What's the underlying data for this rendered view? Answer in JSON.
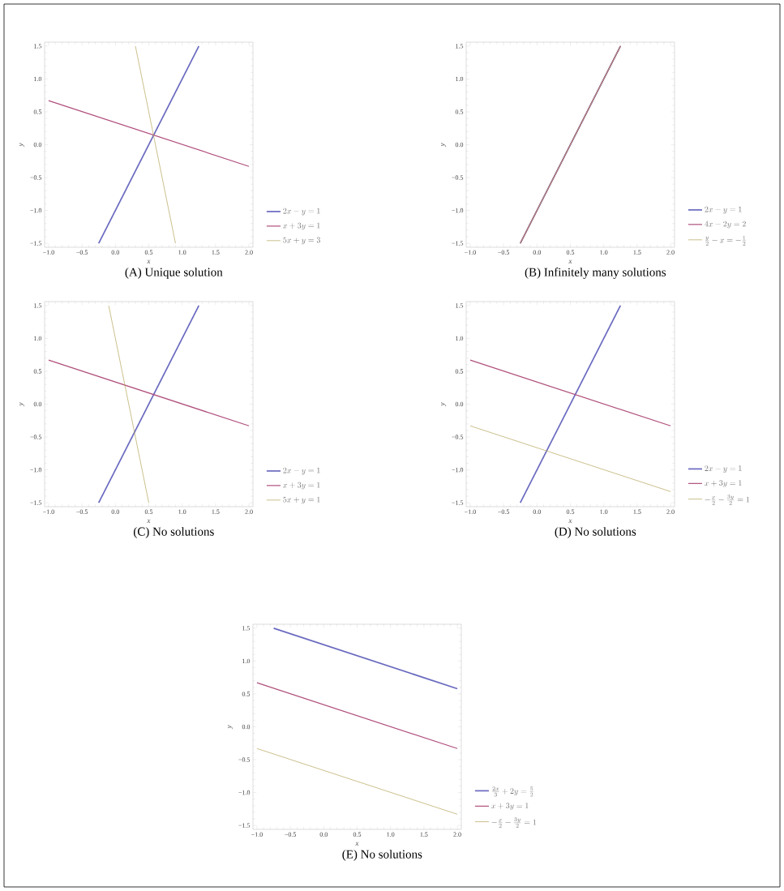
{
  "chart_data": [
    {
      "type": "line",
      "title": "(A) Unique solution",
      "xlabel": "x",
      "ylabel": "y",
      "xlim": [
        -1.06,
        2.06
      ],
      "ylim": [
        -1.56,
        1.56
      ],
      "xticks": [
        {
          "value": -1,
          "label": "−1.0"
        },
        {
          "value": -0.5,
          "label": "−0.5"
        },
        {
          "value": 0,
          "label": "0.0"
        },
        {
          "value": 0.5,
          "label": "0.5"
        },
        {
          "value": 1,
          "label": "1.0"
        },
        {
          "value": 1.5,
          "label": "1.5"
        },
        {
          "value": 2,
          "label": "2.0"
        }
      ],
      "yticks": [
        {
          "value": -1.5,
          "label": "−1.5"
        },
        {
          "value": -1,
          "label": "−1.0"
        },
        {
          "value": -0.5,
          "label": "−0.5"
        },
        {
          "value": 0,
          "label": "0.0"
        },
        {
          "value": 0.5,
          "label": "0.5"
        },
        {
          "value": 1,
          "label": "1.0"
        },
        {
          "value": 1.5,
          "label": "1.5"
        }
      ],
      "legend": "bottom right",
      "series": [
        {
          "name": "2x-y=1",
          "color": "#6a6ac0",
          "x": [
            -0.25,
            1.25
          ],
          "values": [
            -1.5,
            1.5
          ]
        },
        {
          "name": "x+3y=1",
          "color": "#b04f7c",
          "x": [
            -1,
            2
          ],
          "values": [
            0.67,
            -0.33
          ]
        },
        {
          "name": "5x+y=3",
          "color": "#b5a55a",
          "x": [
            0.3,
            0.9
          ],
          "values": [
            1.5,
            -1.5
          ]
        }
      ]
    },
    {
      "type": "line",
      "title": "(B) Infinitely many solutions",
      "xlabel": "x",
      "ylabel": "y",
      "xlim": [
        -1.06,
        2.06
      ],
      "ylim": [
        -1.56,
        1.56
      ],
      "xticks": [
        {
          "value": -1,
          "label": "−1.0"
        },
        {
          "value": -0.5,
          "label": "−0.5"
        },
        {
          "value": 0,
          "label": "0.0"
        },
        {
          "value": 0.5,
          "label": "0.5"
        },
        {
          "value": 1,
          "label": "1.0"
        },
        {
          "value": 1.5,
          "label": "1.5"
        },
        {
          "value": 2,
          "label": "2.0"
        }
      ],
      "yticks": [
        {
          "value": -1.5,
          "label": "−1.5"
        },
        {
          "value": -1,
          "label": "−1.0"
        },
        {
          "value": -0.5,
          "label": "−0.5"
        },
        {
          "value": 0,
          "label": "0.0"
        },
        {
          "value": 0.5,
          "label": "0.5"
        },
        {
          "value": 1,
          "label": "1.0"
        },
        {
          "value": 1.5,
          "label": "1.5"
        }
      ],
      "legend": "bottom right",
      "series": [
        {
          "name": "2x-y=1",
          "color": "#6a6ac0",
          "x": [
            -0.25,
            1.25
          ],
          "values": [
            -1.5,
            1.5
          ]
        },
        {
          "name": "4x-2y=2",
          "color": "#b04f7c",
          "x": [
            -0.25,
            1.25
          ],
          "values": [
            -1.5,
            1.5
          ]
        },
        {
          "name": "\\frac{y}{2}-x=-\\frac{1}{2}",
          "color": "#b5a55a",
          "x": [
            -0.25,
            1.25
          ],
          "values": [
            -1.5,
            1.5
          ]
        }
      ]
    },
    {
      "type": "line",
      "title": "(C) No solutions",
      "xlabel": "x",
      "ylabel": "y",
      "xlim": [
        -1.06,
        2.06
      ],
      "ylim": [
        -1.56,
        1.56
      ],
      "xticks": [
        {
          "value": -1,
          "label": "−1.0"
        },
        {
          "value": -0.5,
          "label": "−0.5"
        },
        {
          "value": 0,
          "label": "0.0"
        },
        {
          "value": 0.5,
          "label": "0.5"
        },
        {
          "value": 1,
          "label": "1.0"
        },
        {
          "value": 1.5,
          "label": "1.5"
        },
        {
          "value": 2,
          "label": "2.0"
        }
      ],
      "yticks": [
        {
          "value": -1.5,
          "label": "−1.5"
        },
        {
          "value": -1,
          "label": "−1.0"
        },
        {
          "value": -0.5,
          "label": "−0.5"
        },
        {
          "value": 0,
          "label": "0.0"
        },
        {
          "value": 0.5,
          "label": "0.5"
        },
        {
          "value": 1,
          "label": "1.0"
        },
        {
          "value": 1.5,
          "label": "1.5"
        }
      ],
      "legend": "bottom right",
      "series": [
        {
          "name": "2x-y=1",
          "color": "#6a6ac0",
          "x": [
            -0.25,
            1.25
          ],
          "values": [
            -1.5,
            1.5
          ]
        },
        {
          "name": "x+3y=1",
          "color": "#b04f7c",
          "x": [
            -1,
            2
          ],
          "values": [
            0.67,
            -0.33
          ]
        },
        {
          "name": "5x+y=1",
          "color": "#b5a55a",
          "x": [
            -0.1,
            0.5
          ],
          "values": [
            1.5,
            -1.5
          ]
        }
      ]
    },
    {
      "type": "line",
      "title": "(D) No solutions",
      "xlabel": "x",
      "ylabel": "y",
      "xlim": [
        -1.06,
        2.06
      ],
      "ylim": [
        -1.56,
        1.56
      ],
      "xticks": [
        {
          "value": -1,
          "label": "−1.0"
        },
        {
          "value": -0.5,
          "label": "−0.5"
        },
        {
          "value": 0,
          "label": "0.0"
        },
        {
          "value": 0.5,
          "label": "0.5"
        },
        {
          "value": 1,
          "label": "1.0"
        },
        {
          "value": 1.5,
          "label": "1.5"
        },
        {
          "value": 2,
          "label": "2.0"
        }
      ],
      "yticks": [
        {
          "value": -1.5,
          "label": "−1.5"
        },
        {
          "value": -1,
          "label": "−1.0"
        },
        {
          "value": -0.5,
          "label": "−0.5"
        },
        {
          "value": 0,
          "label": "0.0"
        },
        {
          "value": 0.5,
          "label": "0.5"
        },
        {
          "value": 1,
          "label": "1.0"
        },
        {
          "value": 1.5,
          "label": "1.5"
        }
      ],
      "legend": "bottom right",
      "series": [
        {
          "name": "2x-y=1",
          "color": "#6a6ac0",
          "x": [
            -0.25,
            1.25
          ],
          "values": [
            -1.5,
            1.5
          ]
        },
        {
          "name": "x+3y=1",
          "color": "#b04f7c",
          "x": [
            -1,
            2
          ],
          "values": [
            0.67,
            -0.33
          ]
        },
        {
          "name": "-\\frac{x}{2}-\\frac{3y}{2}=1",
          "color": "#b5a55a",
          "x": [
            -1,
            2
          ],
          "values": [
            -0.33,
            -1.33
          ]
        }
      ]
    },
    {
      "type": "line",
      "title": "(E) No solutions",
      "xlabel": "x",
      "ylabel": "y",
      "xlim": [
        -1.06,
        2.06
      ],
      "ylim": [
        -1.56,
        1.56
      ],
      "xticks": [
        {
          "value": -1,
          "label": "−1.0"
        },
        {
          "value": -0.5,
          "label": "−0.5"
        },
        {
          "value": 0,
          "label": "0.0"
        },
        {
          "value": 0.5,
          "label": "0.5"
        },
        {
          "value": 1,
          "label": "1.0"
        },
        {
          "value": 1.5,
          "label": "1.5"
        },
        {
          "value": 2,
          "label": "2.0"
        }
      ],
      "yticks": [
        {
          "value": -1.5,
          "label": "−1.5"
        },
        {
          "value": -1,
          "label": "−1.0"
        },
        {
          "value": -0.5,
          "label": "−0.5"
        },
        {
          "value": 0,
          "label": "0.0"
        },
        {
          "value": 0.5,
          "label": "0.5"
        },
        {
          "value": 1,
          "label": "1.0"
        },
        {
          "value": 1.5,
          "label": "1.5"
        }
      ],
      "legend": "bottom right",
      "series": [
        {
          "name": "\\frac{2x}{3}+2y=\\frac{5}{2}",
          "color": "#6a6ac0",
          "x": [
            -0.75,
            2
          ],
          "values": [
            1.5,
            0.58
          ]
        },
        {
          "name": "x+3y=1",
          "color": "#b04f7c",
          "x": [
            -1,
            2
          ],
          "values": [
            0.67,
            -0.33
          ]
        },
        {
          "name": "-\\frac{x}{2}-\\frac{3y}{2}=1",
          "color": "#b5a55a",
          "x": [
            -1,
            2
          ],
          "values": [
            -0.33,
            -1.33
          ]
        }
      ]
    }
  ]
}
